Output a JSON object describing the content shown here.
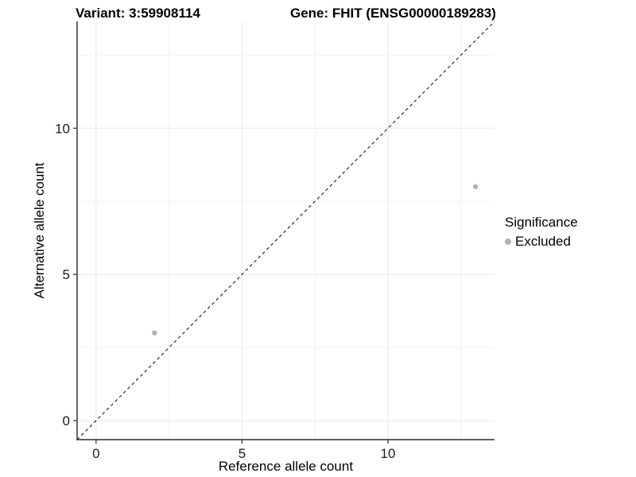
{
  "chart_data": {
    "type": "scatter",
    "title_left": "Variant: 3:59908114",
    "title_right": "Gene: FHIT (ENSG00000189283)",
    "xlabel": "Reference allele count",
    "ylabel": "Alternative allele count",
    "xlim": [
      -0.65,
      13.65
    ],
    "ylim": [
      -0.65,
      13.65
    ],
    "x_ticks": [
      0,
      5,
      10
    ],
    "y_ticks": [
      0,
      5,
      10
    ],
    "x_minor_ticks": [
      2.5,
      7.5,
      12.5
    ],
    "y_minor_ticks": [
      2.5,
      7.5,
      12.5
    ],
    "grid": true,
    "points": [
      {
        "x": 2,
        "y": 3,
        "series": "Excluded"
      },
      {
        "x": 13,
        "y": 8,
        "series": "Excluded"
      }
    ],
    "identity_line": {
      "style": "dashed",
      "from": -0.65,
      "to": 13.65
    },
    "legend": {
      "title": "Significance",
      "position": "right",
      "items": [
        {
          "label": "Excluded",
          "color": "#b4b4b4"
        }
      ]
    },
    "colors": {
      "point": "#b4b4b4",
      "grid_major": "#e8e8e8",
      "grid_minor": "#f3f3f3",
      "axis_line": "#2b2b2b",
      "tick_mark": "#2b2b2b",
      "tick_text": "#1a1a1a",
      "dashed_line": "#1a1a1a",
      "background": "#ffffff"
    },
    "tick_font_size": 17
  }
}
